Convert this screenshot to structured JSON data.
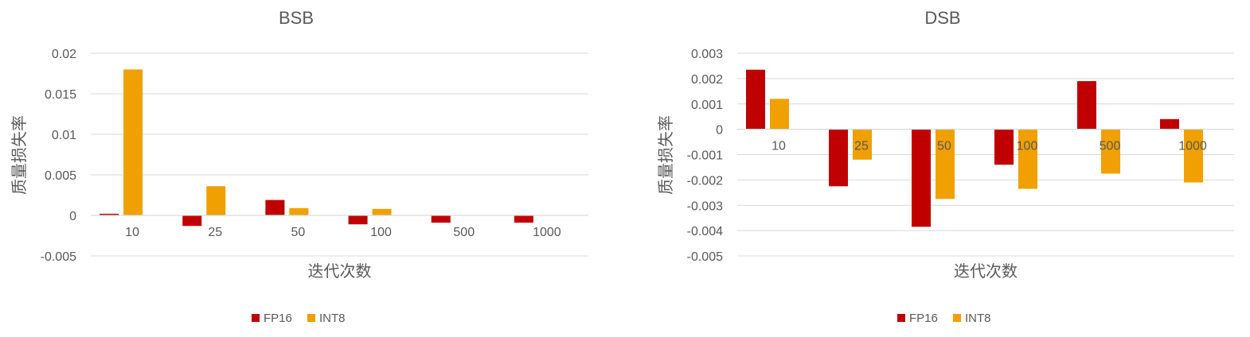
{
  "colors": {
    "FP16": "#c00000",
    "INT8": "#f0a000",
    "grid": "#d9d9d9",
    "text": "#595959",
    "title": "#595959"
  },
  "chart_data": [
    {
      "type": "bar",
      "title": "BSB",
      "xlabel": "迭代次数",
      "ylabel": "质量损失率",
      "categories": [
        "10",
        "25",
        "50",
        "100",
        "500",
        "1000"
      ],
      "ylim": [
        -0.005,
        0.02
      ],
      "yticks": [
        0.02,
        0.015,
        0.01,
        0.005,
        0,
        -0.005
      ],
      "ytick_labels": [
        "0.02",
        "0.015",
        "0.01",
        "0.005",
        "0",
        "-0.005"
      ],
      "series": [
        {
          "name": "FP16",
          "values": [
            0.0002,
            -0.0013,
            0.0019,
            -0.0011,
            -0.0009,
            -0.0009
          ]
        },
        {
          "name": "INT8",
          "values": [
            0.018,
            0.0036,
            0.0009,
            0.0008,
            0,
            0
          ]
        }
      ],
      "grid": true,
      "legend": "bottom"
    },
    {
      "type": "bar",
      "title": "DSB",
      "xlabel": "迭代次数",
      "ylabel": "质量损失率",
      "categories": [
        "10",
        "25",
        "50",
        "100",
        "500",
        "1000"
      ],
      "ylim": [
        -0.005,
        0.003
      ],
      "yticks": [
        0.003,
        0.002,
        0.001,
        0,
        -0.001,
        -0.002,
        -0.003,
        -0.004,
        -0.005
      ],
      "ytick_labels": [
        "0.003",
        "0.002",
        "0.001",
        "0",
        "-0.001",
        "-0.002",
        "-0.003",
        "-0.004",
        "-0.005"
      ],
      "series": [
        {
          "name": "FP16",
          "values": [
            0.00235,
            -0.00225,
            -0.00385,
            -0.0014,
            0.0019,
            0.0004
          ]
        },
        {
          "name": "INT8",
          "values": [
            0.0012,
            -0.0012,
            -0.00275,
            -0.00235,
            -0.00175,
            -0.0021
          ]
        }
      ],
      "grid": true,
      "legend": "bottom"
    }
  ]
}
